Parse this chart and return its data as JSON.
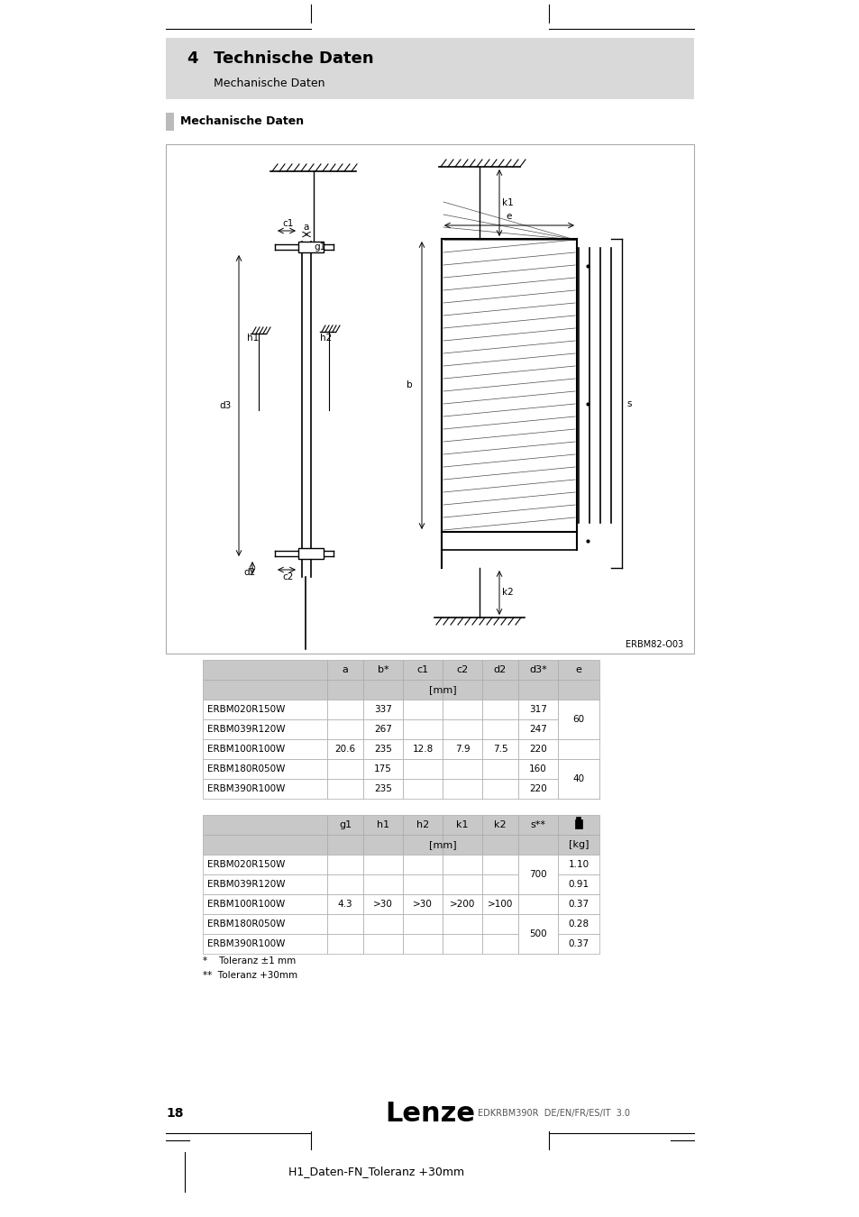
{
  "page_num": "18",
  "chapter_num": "4",
  "chapter_title": "Technische Daten",
  "chapter_subtitle": "Mechanische Daten",
  "section_title": "Mechanische Daten",
  "diagram_label": "ERBM82-O03",
  "footer_brand": "Lenze",
  "footer_code": "EDKRBM390R  DE/EN/FR/ES/IT  3.0",
  "bottom_text": "H1_Daten-FN_Toleranz +30mm",
  "table1_headers": [
    "",
    "a",
    "b*",
    "c1",
    "c2",
    "d2",
    "d3*",
    "e"
  ],
  "table1_rows": [
    [
      "ERBM020R150W",
      "",
      "337",
      "",
      "",
      "",
      "317",
      ""
    ],
    [
      "ERBM039R120W",
      "",
      "267",
      "",
      "",
      "",
      "247",
      "60"
    ],
    [
      "ERBM100R100W",
      "20.6",
      "235",
      "12.8",
      "7.9",
      "7.5",
      "220",
      ""
    ],
    [
      "ERBM180R050W",
      "",
      "175",
      "",
      "",
      "",
      "160",
      "40"
    ],
    [
      "ERBM390R100W",
      "",
      "235",
      "",
      "",
      "",
      "220",
      ""
    ]
  ],
  "table2_headers": [
    "",
    "g1",
    "h1",
    "h2",
    "k1",
    "k2",
    "s**",
    "kg_icon"
  ],
  "table2_rows": [
    [
      "ERBM020R150W",
      "",
      "",
      "",
      "",
      "",
      "",
      "1.10"
    ],
    [
      "ERBM039R120W",
      "",
      "",
      "",
      "",
      "",
      "700",
      "0.91"
    ],
    [
      "ERBM100R100W",
      "4.3",
      ">30",
      ">30",
      ">200",
      ">100",
      "",
      "0.37"
    ],
    [
      "ERBM180R050W",
      "",
      "",
      "",
      "",
      "",
      "500",
      "0.28"
    ],
    [
      "ERBM390R100W",
      "",
      "",
      "",
      "",
      "",
      "",
      "0.37"
    ]
  ],
  "footnote1": "*    Toleranz ±1 mm",
  "footnote2": "**  Toleranz +30mm",
  "bg_color": "#ffffff",
  "chapter_bg": "#d9d9d9",
  "table_hdr_bg": "#c8c8c8",
  "border_color": "#aaaaaa"
}
